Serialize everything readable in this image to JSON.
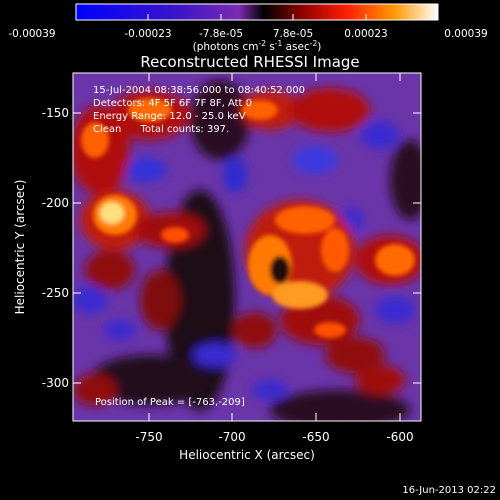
{
  "colorbar": {
    "ticks": [
      "-0.00039",
      "-0.00023",
      "-7.8e-05",
      "7.8e-05",
      "0.00023",
      "0.00039"
    ],
    "units_prefix": "(photons cm",
    "units_sup1": "-2",
    "units_mid": " s",
    "units_sup2": "-1",
    "units_end": " asec",
    "units_sup3": "-2",
    "units_close": ")"
  },
  "title": "Reconstructed RHESSI Image",
  "annotations": {
    "line1": "15-Jul-2004 08:38:56.000 to 08:40:52.000",
    "line2": "Detectors: 4F 5F 6F 7F 8F, Att 0",
    "line3": "Energy Range: 12.0 - 25.0 keV",
    "line4": "Clean      Total counts: 397.",
    "peak": "Position of Peak = [-763,-209]"
  },
  "axes": {
    "xlabel": "Heliocentric X (arcsec)",
    "ylabel": "Heliocentric Y (arcsec)",
    "xticks": [
      "-750",
      "-700",
      "-650",
      "-600"
    ],
    "yticks": [
      "-150",
      "-200",
      "-250",
      "-300"
    ]
  },
  "footer": {
    "timestamp": "16-Jun-2013 02:22"
  }
}
